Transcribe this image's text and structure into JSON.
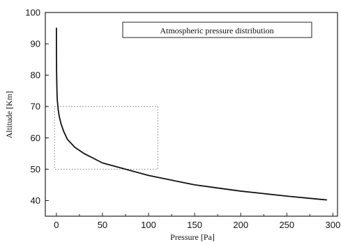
{
  "chart_data": {
    "type": "line",
    "title": "",
    "xlabel": "Pressure [Pa]",
    "ylabel": "Altitude [Km]",
    "xlim": [
      -12,
      305
    ],
    "ylim": [
      35,
      100
    ],
    "x_ticks": [
      0,
      50,
      100,
      150,
      200,
      250,
      300
    ],
    "y_ticks": [
      40,
      50,
      60,
      70,
      80,
      90,
      100
    ],
    "legend": {
      "text": "Atmospheric pressure distribution",
      "placement": "top-right"
    },
    "highlight_region": {
      "x": [
        -2,
        110
      ],
      "y": [
        50,
        70
      ],
      "style": "dotted"
    },
    "series": [
      {
        "x": [
          0.02,
          0.05,
          0.1,
          0.2,
          0.4,
          0.7,
          1,
          2,
          3,
          5,
          8,
          12,
          20,
          30,
          50,
          75,
          100,
          125,
          150,
          175,
          200,
          225,
          250,
          275,
          293
        ],
        "y": [
          95,
          90,
          86,
          82,
          78,
          74,
          72,
          69,
          67,
          64.5,
          62,
          59.5,
          57,
          55,
          52,
          50,
          48,
          46.5,
          45,
          44,
          43,
          42.2,
          41.4,
          40.7,
          40.2
        ]
      }
    ],
    "colors": {
      "line": "#111111",
      "axis": "#222222",
      "box": "#777777"
    }
  }
}
